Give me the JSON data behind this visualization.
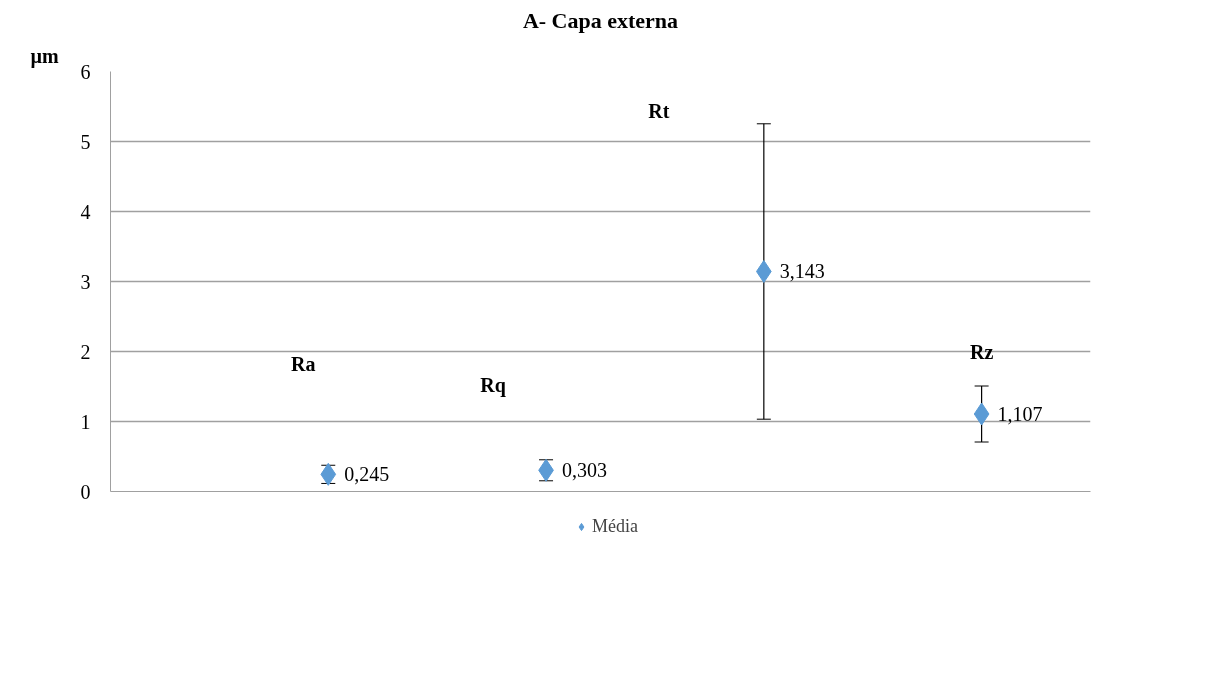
{
  "chart_data": {
    "type": "scatter",
    "title": "A- Capa externa",
    "ylabel": "µm",
    "categories": [
      null,
      null,
      null,
      null
    ],
    "ylim": [
      0,
      6
    ],
    "yticks": [
      0,
      1,
      2,
      3,
      4,
      5,
      6
    ],
    "series": [
      {
        "name": "Média",
        "color": "#5b9bd5",
        "values": [
          0.245,
          0.303,
          3.143,
          1.107
        ],
        "errors": [
          0.13,
          0.15,
          2.11,
          0.4
        ],
        "value_labels": [
          "0,245",
          "0,303",
          "3,143",
          "1,107"
        ]
      }
    ],
    "annotations": [
      "Ra",
      "Rq",
      "Rt",
      "Rz"
    ],
    "marker": "diamond",
    "grid": "y",
    "legend": "bottom"
  }
}
